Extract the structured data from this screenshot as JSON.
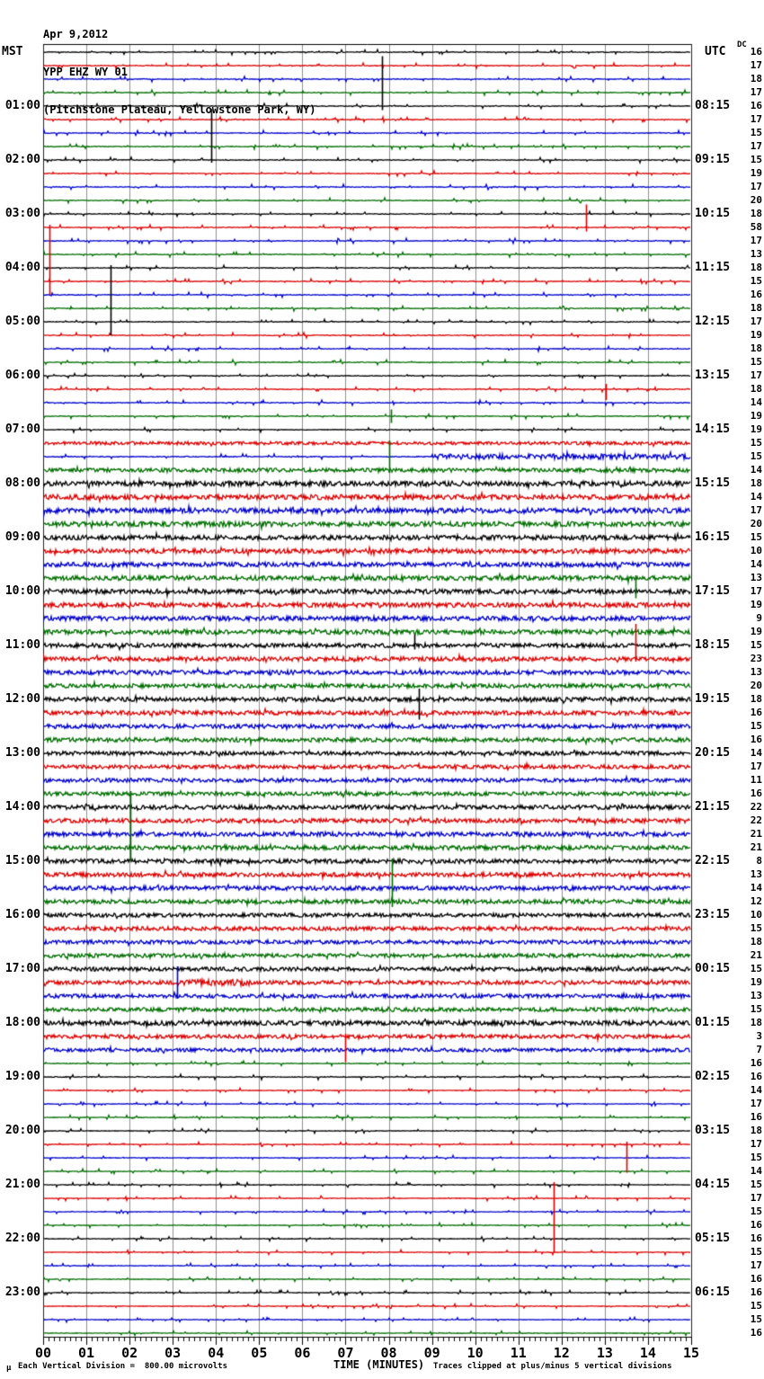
{
  "title": {
    "date": "Apr 9,2012",
    "station": "YPP EHZ WY 01",
    "location": "(Pitchstone Plateau, Yellowstone Park, WY)"
  },
  "axes": {
    "left_header": "MST",
    "right_header": "UTC",
    "dc_header": "DC",
    "xlabel": "TIME (MINUTES)",
    "x_ticks": [
      "00",
      "01",
      "02",
      "03",
      "04",
      "05",
      "06",
      "07",
      "08",
      "09",
      "10",
      "11",
      "12",
      "13",
      "14",
      "15"
    ]
  },
  "footer": {
    "corner_mark": "µ",
    "left_note": "Each Vertical Division =  800.00 microvolts",
    "right_note": "Traces clipped at plus/minus 5 vertical divisions"
  },
  "chart_data": {
    "type": "line",
    "subtype": "helicorder-seismogram",
    "minutes_per_line": 15,
    "rows": 96,
    "trace_color_cycle": [
      "#000000",
      "#dd0000",
      "#0000cc",
      "#006e00"
    ],
    "grid_color": "#8f8f8f",
    "mst_label_start_row": 5,
    "label_row_step": 4,
    "mst_labels": [
      "01:00",
      "02:00",
      "03:00",
      "04:00",
      "05:00",
      "06:00",
      "07:00",
      "08:00",
      "09:00",
      "10:00",
      "11:00",
      "12:00",
      "13:00",
      "14:00",
      "15:00",
      "16:00",
      "17:00",
      "18:00",
      "19:00",
      "20:00",
      "21:00",
      "22:00",
      "23:00"
    ],
    "utc_labels": [
      "08:15",
      "09:15",
      "10:15",
      "11:15",
      "12:15",
      "13:15",
      "14:15",
      "15:15",
      "16:15",
      "17:15",
      "18:15",
      "19:15",
      "20:15",
      "21:15",
      "22:15",
      "23:15",
      "00:15",
      "01:15",
      "02:15",
      "03:15",
      "04:15",
      "05:15",
      "06:15"
    ],
    "dc_values": [
      16,
      17,
      18,
      17,
      16,
      17,
      15,
      17,
      15,
      19,
      17,
      20,
      18,
      58,
      17,
      13,
      18,
      15,
      16,
      18,
      17,
      19,
      18,
      15,
      17,
      18,
      14,
      19,
      19,
      15,
      15,
      14,
      18,
      14,
      17,
      20,
      15,
      10,
      14,
      13,
      17,
      19,
      9,
      19,
      15,
      23,
      13,
      20,
      18,
      16,
      15,
      16,
      14,
      17,
      11,
      16,
      22,
      22,
      21,
      21,
      8,
      13,
      14,
      12,
      10,
      15,
      18,
      21,
      15,
      19,
      13,
      15,
      18,
      3,
      7,
      16,
      16,
      14,
      17,
      16,
      18,
      17,
      15,
      14,
      15,
      17,
      15,
      16,
      16,
      15,
      17,
      16,
      16,
      15,
      15,
      16
    ],
    "noise_amplitudes": [
      0.8,
      0.8,
      0.8,
      0.8,
      0.8,
      0.8,
      0.8,
      0.8,
      0.8,
      0.8,
      0.8,
      0.8,
      0.8,
      0.8,
      0.8,
      0.8,
      0.8,
      0.8,
      0.8,
      0.8,
      0.8,
      0.8,
      0.8,
      0.8,
      0.8,
      0.8,
      0.8,
      0.8,
      0.8,
      1.8,
      1.0,
      2.2,
      2.8,
      2.8,
      2.8,
      2.8,
      2.6,
      2.6,
      2.6,
      2.6,
      2.6,
      2.6,
      2.6,
      2.6,
      2.4,
      2.4,
      2.4,
      2.4,
      2.4,
      2.4,
      2.4,
      2.4,
      2.2,
      2.2,
      2.2,
      2.2,
      2.4,
      2.4,
      2.4,
      2.4,
      2.4,
      2.4,
      2.4,
      2.4,
      2.2,
      2.2,
      2.2,
      2.2,
      2.2,
      2.2,
      2.2,
      2.2,
      2.6,
      2.2,
      2.0,
      0.7,
      0.9,
      0.55,
      0.55,
      0.55,
      0.55,
      0.55,
      0.55,
      0.55,
      0.55,
      0.55,
      0.55,
      0.55,
      0.55,
      0.55,
      0.55,
      0.55,
      0.55,
      0.55,
      0.55,
      0.55
    ],
    "events": [
      {
        "row": 5,
        "minute": 7.84,
        "up": 3.7,
        "down": 0.3
      },
      {
        "row": 9,
        "minute": 3.9,
        "up": 3.8,
        "down": 0.2
      },
      {
        "row": 14,
        "minute": 0.15,
        "up": 0.2,
        "down": 5.0
      },
      {
        "row": 14,
        "minute": 12.57,
        "up": 1.7,
        "down": 0.3
      },
      {
        "row": 17,
        "minute": 1.55,
        "up": 0.2,
        "down": 5.0
      },
      {
        "row": 26,
        "minute": 13.03,
        "up": 0.4,
        "down": 0.8
      },
      {
        "row": 28,
        "minute": 8.05,
        "up": 0.5,
        "down": 0.5
      },
      {
        "row": 32,
        "minute": 8.02,
        "up": 2.2,
        "down": 0.2
      },
      {
        "row": 40,
        "minute": 13.7,
        "up": 0.2,
        "down": 1.5
      },
      {
        "row": 45,
        "minute": 8.6,
        "up": 0.8,
        "down": 0.3
      },
      {
        "row": 46,
        "minute": 13.72,
        "up": 2.6,
        "down": 0.2
      },
      {
        "row": 49,
        "minute": 8.7,
        "up": 0.8,
        "down": 1.5
      },
      {
        "row": 56,
        "minute": 2.02,
        "up": 0.2,
        "down": 5.0
      },
      {
        "row": 64,
        "minute": 8.08,
        "up": 3.2,
        "down": 0.4
      },
      {
        "row": 71,
        "minute": 3.1,
        "up": 2.2,
        "down": 0.2
      },
      {
        "row": 74,
        "minute": 6.98,
        "up": 0.2,
        "down": 1.9
      },
      {
        "row": 82,
        "minute": 13.5,
        "up": 0.2,
        "down": 2.1
      },
      {
        "row": 86,
        "minute": 11.82,
        "up": 1.2,
        "down": 4.0
      }
    ],
    "noise_bursts": [
      {
        "row": 31,
        "from_minute": 9.0,
        "to_minute": 15,
        "amplitude": 3.0
      },
      {
        "row": 70,
        "from_minute": 3.1,
        "to_minute": 4.8,
        "amplitude": 3.5
      }
    ]
  }
}
